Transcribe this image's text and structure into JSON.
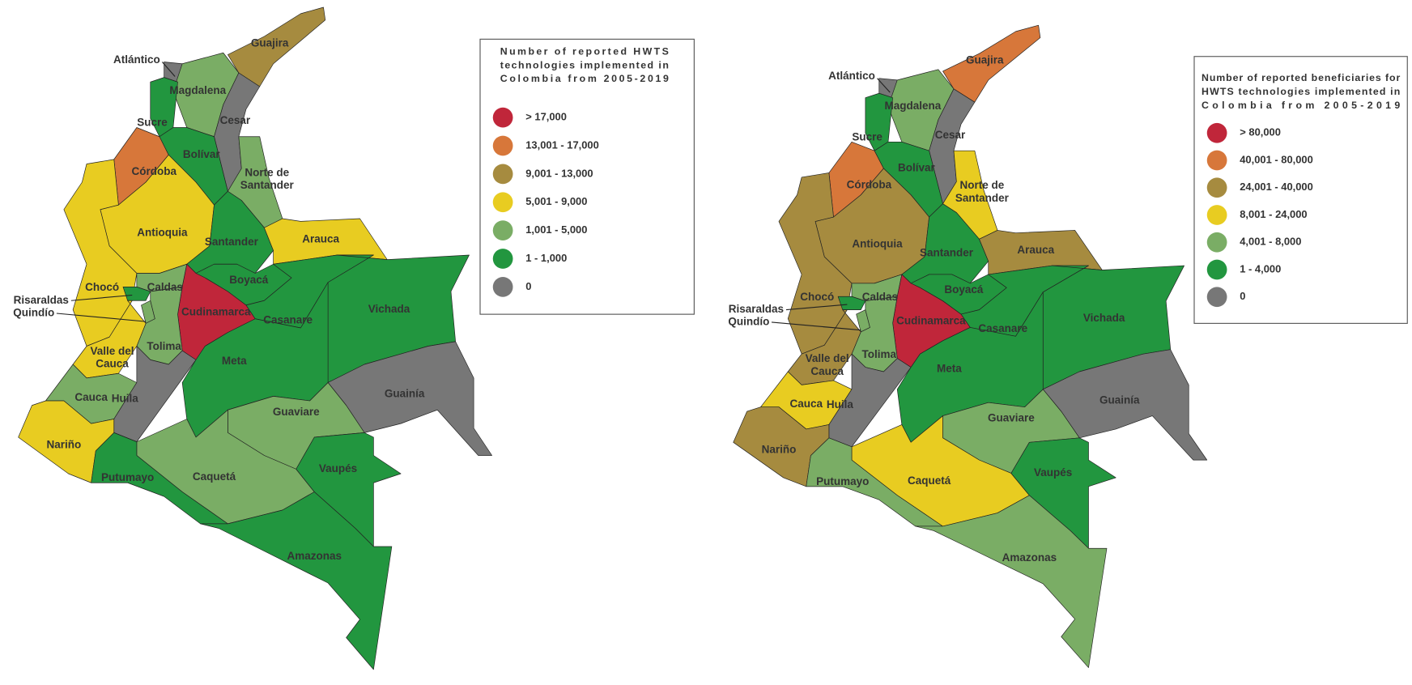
{
  "maps": [
    {
      "legend": {
        "title": [
          "Number of reported HWTS",
          "technologies implemented in",
          "Colombia from 2005-2019"
        ],
        "items": [
          {
            "label": "> 17,000",
            "color": "#c0263a"
          },
          {
            "label": "13,001 - 17,000",
            "color": "#d7773a"
          },
          {
            "label": "9,001 - 13,000",
            "color": "#a68b3f"
          },
          {
            "label": "5,001 - 9,000",
            "color": "#e8cc21"
          },
          {
            "label": "1,001 - 5,000",
            "color": "#7aad65"
          },
          {
            "label": "1 -  1,000",
            "color": "#22963f"
          },
          {
            "label": "0",
            "color": "#777777"
          }
        ]
      },
      "regions": [
        {
          "label": [
            "Guajira"
          ],
          "color": "#a68b3f"
        },
        {
          "label": [
            "Atlántico"
          ],
          "color": "#777777"
        },
        {
          "label": [
            "Magdalena"
          ],
          "color": "#7aad65"
        },
        {
          "label": [
            "Cesar"
          ],
          "color": "#777777"
        },
        {
          "label": [
            "Sucre"
          ],
          "color": "#22963f"
        },
        {
          "label": [
            "Córdoba"
          ],
          "color": "#d7773a"
        },
        {
          "label": [
            "Bolívar"
          ],
          "color": "#22963f"
        },
        {
          "label": [
            "Norte de",
            "Santander"
          ],
          "color": "#7aad65"
        },
        {
          "label": [
            "Antioquia"
          ],
          "color": "#e8cc21"
        },
        {
          "label": [
            "Chocó"
          ],
          "color": "#e8cc21"
        },
        {
          "label": [
            "Santander"
          ],
          "color": "#22963f"
        },
        {
          "label": [
            "Arauca"
          ],
          "color": "#e8cc21"
        },
        {
          "label": [
            "Boyacá"
          ],
          "color": "#22963f"
        },
        {
          "label": [
            "Casanare"
          ],
          "color": "#22963f"
        },
        {
          "label": [
            "Vichada"
          ],
          "color": "#22963f"
        },
        {
          "label": [
            "Caldas"
          ],
          "color": "#7aad65"
        },
        {
          "label": [
            "Risaraldas"
          ],
          "color": "#22963f"
        },
        {
          "label": [
            "Quindío"
          ],
          "color": "#7aad65"
        },
        {
          "label": [
            "Cudinamarca"
          ],
          "color": "#c0263a"
        },
        {
          "label": [
            "Tolima"
          ],
          "color": "#7aad65"
        },
        {
          "label": [
            "Valle del",
            "Cauca"
          ],
          "color": "#e8cc21"
        },
        {
          "label": [
            "Cauca"
          ],
          "color": "#7aad65"
        },
        {
          "label": [
            "Huila"
          ],
          "color": "#777777"
        },
        {
          "label": [
            "Nariño"
          ],
          "color": "#e8cc21"
        },
        {
          "label": [
            "Meta"
          ],
          "color": "#22963f"
        },
        {
          "label": [
            "Guainía"
          ],
          "color": "#777777"
        },
        {
          "label": [
            "Guaviare"
          ],
          "color": "#7aad65"
        },
        {
          "label": [
            "Caquetá"
          ],
          "color": "#7aad65"
        },
        {
          "label": [
            "Putumayo"
          ],
          "color": "#22963f"
        },
        {
          "label": [
            "Vaupés"
          ],
          "color": "#22963f"
        },
        {
          "label": [
            "Amazonas"
          ],
          "color": "#22963f"
        }
      ]
    },
    {
      "legend": {
        "title": [
          "Number of reported beneficiaries for",
          "HWTS technologies implemented in",
          "Colombia from 2005-2019"
        ],
        "items": [
          {
            "label": "> 80,000",
            "color": "#c0263a"
          },
          {
            "label": "40,001 - 80,000",
            "color": "#d7773a"
          },
          {
            "label": "24,001 - 40,000",
            "color": "#a68b3f"
          },
          {
            "label": "8,001 - 24,000",
            "color": "#e8cc21"
          },
          {
            "label": "4,001 - 8,000",
            "color": "#7aad65"
          },
          {
            "label": "1 - 4,000",
            "color": "#22963f"
          },
          {
            "label": "0",
            "color": "#777777"
          }
        ]
      },
      "regions": [
        {
          "label": [
            "Guajira"
          ],
          "color": "#d7773a"
        },
        {
          "label": [
            "Atlántico"
          ],
          "color": "#777777"
        },
        {
          "label": [
            "Magdalena"
          ],
          "color": "#7aad65"
        },
        {
          "label": [
            "Cesar"
          ],
          "color": "#777777"
        },
        {
          "label": [
            "Sucre"
          ],
          "color": "#22963f"
        },
        {
          "label": [
            "Córdoba"
          ],
          "color": "#d7773a"
        },
        {
          "label": [
            "Bolívar"
          ],
          "color": "#22963f"
        },
        {
          "label": [
            "Norte de",
            "Santander"
          ],
          "color": "#e8cc21"
        },
        {
          "label": [
            "Antioquia"
          ],
          "color": "#a68b3f"
        },
        {
          "label": [
            "Chocó"
          ],
          "color": "#a68b3f"
        },
        {
          "label": [
            "Santander"
          ],
          "color": "#22963f"
        },
        {
          "label": [
            "Arauca"
          ],
          "color": "#a68b3f"
        },
        {
          "label": [
            "Boyacá"
          ],
          "color": "#22963f"
        },
        {
          "label": [
            "Casanare"
          ],
          "color": "#22963f"
        },
        {
          "label": [
            "Vichada"
          ],
          "color": "#22963f"
        },
        {
          "label": [
            "Caldas"
          ],
          "color": "#7aad65"
        },
        {
          "label": [
            "Risaraldas"
          ],
          "color": "#22963f"
        },
        {
          "label": [
            "Quindío"
          ],
          "color": "#7aad65"
        },
        {
          "label": [
            "Cudinamarca"
          ],
          "color": "#c0263a"
        },
        {
          "label": [
            "Tolima"
          ],
          "color": "#7aad65"
        },
        {
          "label": [
            "Valle del",
            "Cauca"
          ],
          "color": "#a68b3f"
        },
        {
          "label": [
            "Cauca"
          ],
          "color": "#e8cc21"
        },
        {
          "label": [
            "Huila"
          ],
          "color": "#777777"
        },
        {
          "label": [
            "Nariño"
          ],
          "color": "#a68b3f"
        },
        {
          "label": [
            "Meta"
          ],
          "color": "#22963f"
        },
        {
          "label": [
            "Guainía"
          ],
          "color": "#777777"
        },
        {
          "label": [
            "Guaviare"
          ],
          "color": "#7aad65"
        },
        {
          "label": [
            "Caquetá"
          ],
          "color": "#e8cc21"
        },
        {
          "label": [
            "Putumayo"
          ],
          "color": "#7aad65"
        },
        {
          "label": [
            "Vaupés"
          ],
          "color": "#22963f"
        },
        {
          "label": [
            "Amazonas"
          ],
          "color": "#7aad65"
        }
      ]
    }
  ]
}
